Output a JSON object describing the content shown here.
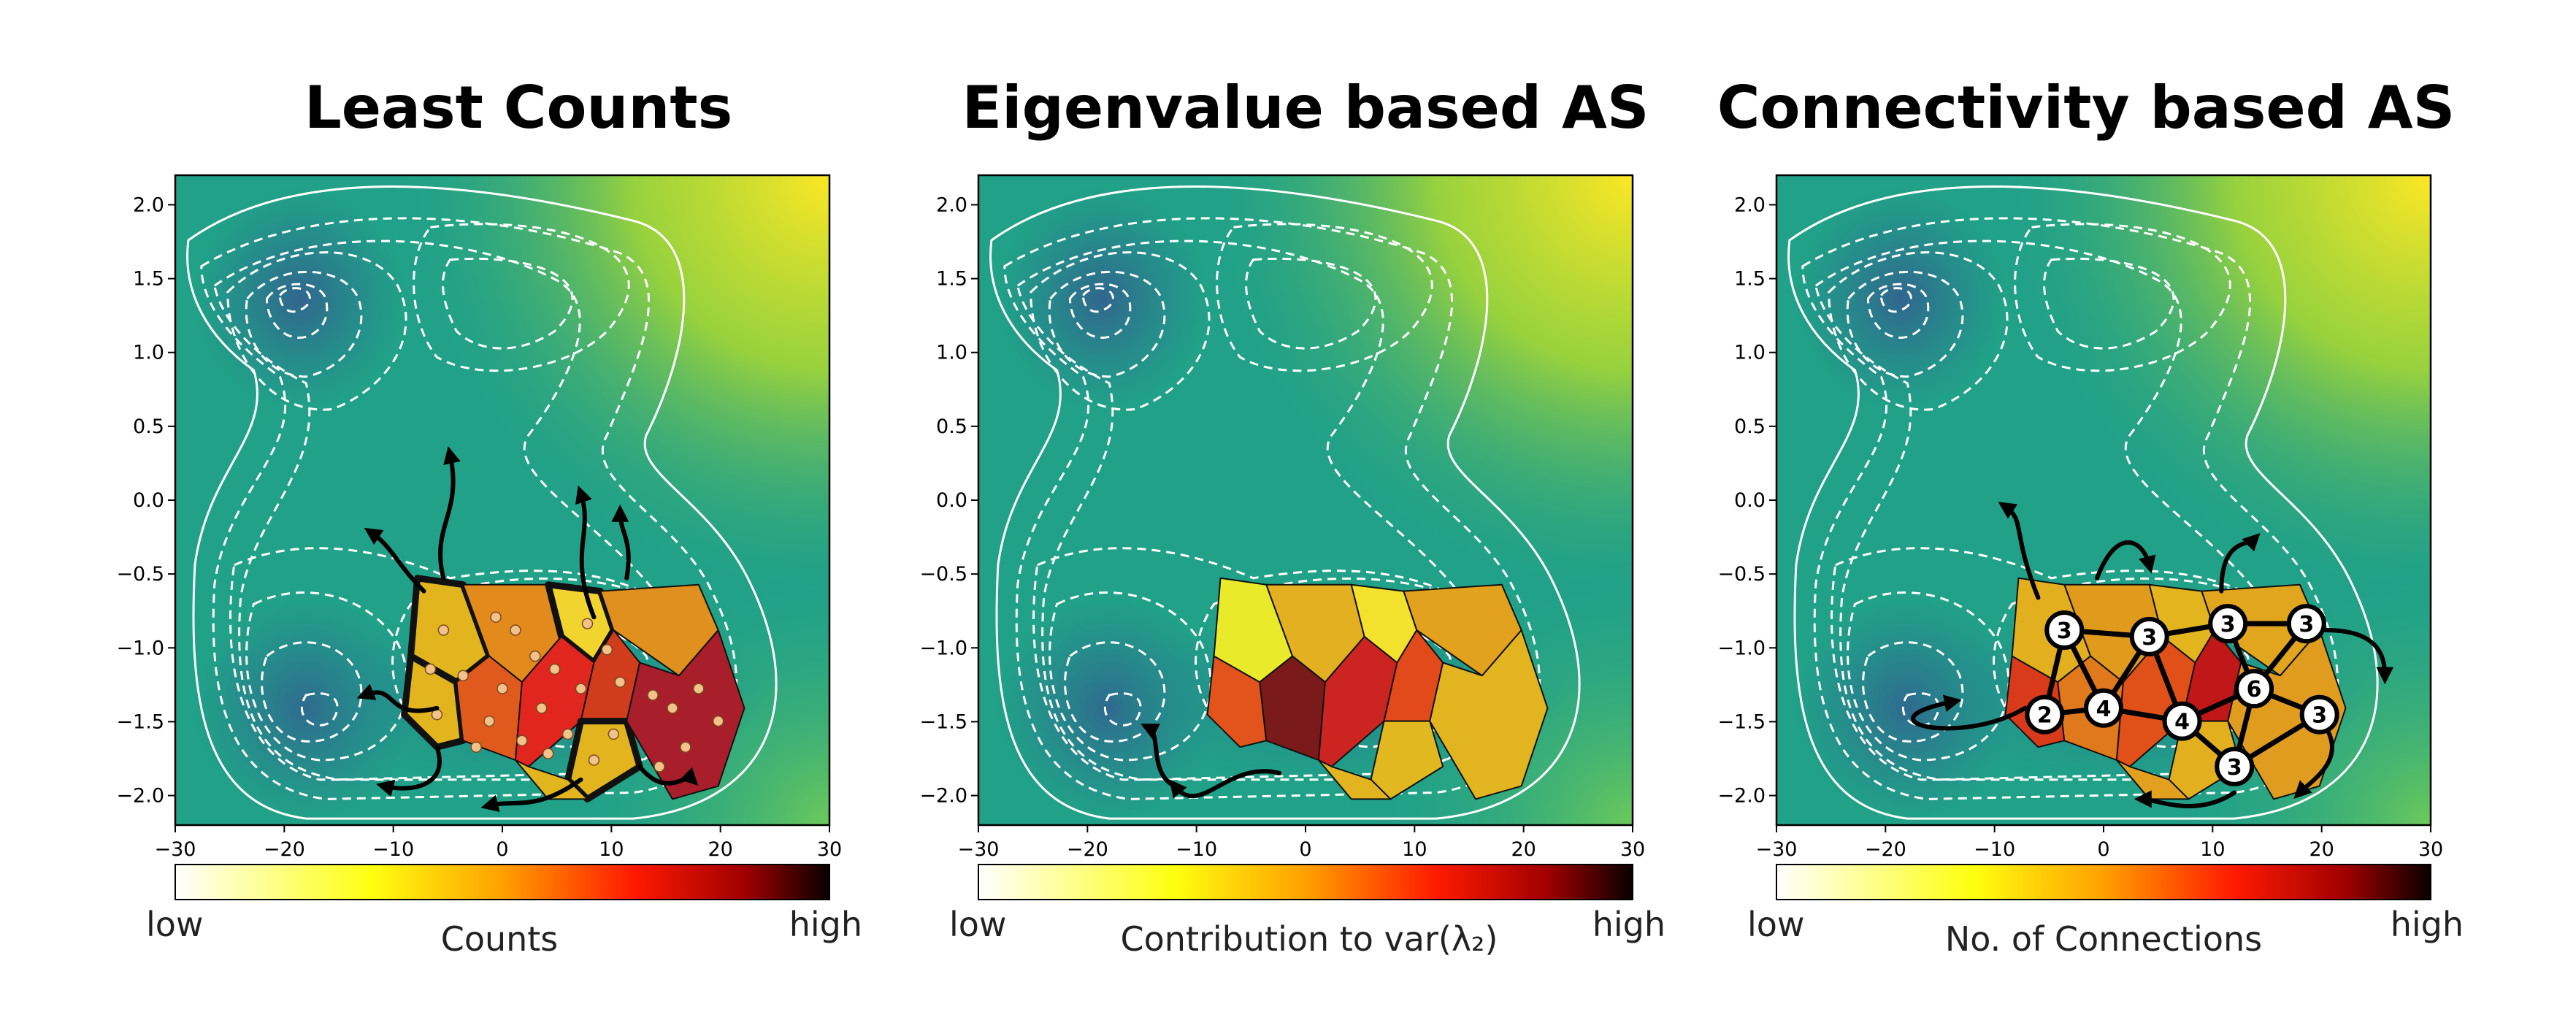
{
  "chart_data": [
    {
      "type": "heatmap",
      "title": "Least Counts",
      "xlabel": "",
      "ylabel": "",
      "xlim": [
        -30,
        30
      ],
      "ylim": [
        -2.2,
        2.2
      ],
      "xticks": [
        "−30",
        "−20",
        "−10",
        "0",
        "10",
        "20",
        "30"
      ],
      "yticks": [
        "2.0",
        "1.5",
        "1.0",
        "0.5",
        "0.0",
        "−0.5",
        "−1.0",
        "−1.5",
        "−2.0"
      ],
      "colorbar": {
        "low": "low",
        "high": "high",
        "label": "Counts"
      },
      "highlight_style": "thick outlines on least-counted cells, sampled points, outgoing trajectories"
    },
    {
      "type": "heatmap",
      "title": "Eigenvalue based AS",
      "xlabel": "",
      "ylabel": "",
      "xlim": [
        -30,
        30
      ],
      "ylim": [
        -2.2,
        2.2
      ],
      "xticks": [
        "−30",
        "−20",
        "−10",
        "0",
        "10",
        "20",
        "30"
      ],
      "yticks": [
        "2.0",
        "1.5",
        "1.0",
        "0.5",
        "0.0",
        "−0.5",
        "−1.0",
        "−1.5",
        "−2.0"
      ],
      "colorbar": {
        "low": "low",
        "high": "high",
        "label": "Contribution to var(λ₂)"
      },
      "highlight_style": "single trajectory toward left-bottom minimum"
    },
    {
      "type": "heatmap",
      "title": "Connectivity based AS",
      "xlabel": "",
      "ylabel": "",
      "xlim": [
        -30,
        30
      ],
      "ylim": [
        -2.2,
        2.2
      ],
      "xticks": [
        "−30",
        "−20",
        "−10",
        "0",
        "10",
        "20",
        "30"
      ],
      "yticks": [
        "2.0",
        "1.5",
        "1.0",
        "0.5",
        "0.0",
        "−0.5",
        "−1.0",
        "−1.5",
        "−2.0"
      ],
      "colorbar": {
        "low": "low",
        "high": "high",
        "label": "No. of Connections"
      },
      "connections": [
        "3",
        "3",
        "3",
        "3",
        "6",
        "2",
        "4",
        "4",
        "3",
        "3"
      ],
      "highlight_style": "graph of cell connections with counts per node"
    }
  ],
  "colors": {
    "potential_low": "#31658e",
    "potential_mid": "#21a188",
    "potential_high": "#fde725",
    "contour": "#ffffff"
  }
}
